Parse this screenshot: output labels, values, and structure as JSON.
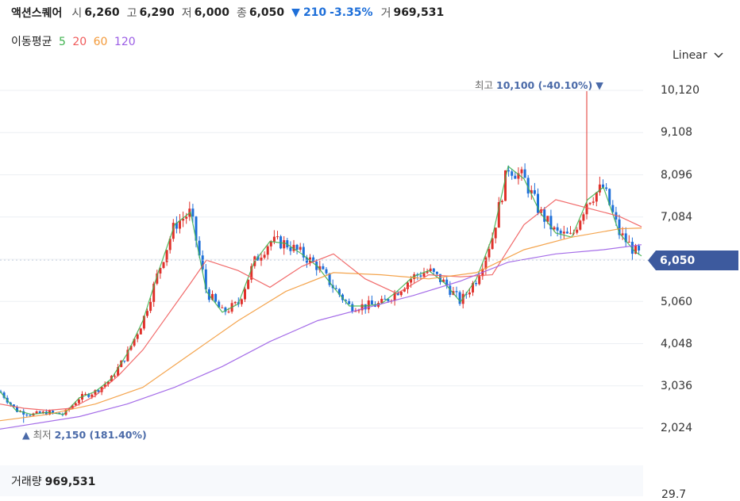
{
  "header": {
    "name": "액션스퀘어",
    "open_label": "시",
    "open": "6,260",
    "high_label": "고",
    "high": "6,290",
    "low_label": "저",
    "low": "6,000",
    "close_label": "종",
    "close": "6,050",
    "change_arrow": "▼",
    "change": "210",
    "change_pct": "-3.35%",
    "volume_label": "거",
    "volume": "969,531"
  },
  "ma_legend": {
    "label": "이동평균",
    "items": [
      {
        "period": "5",
        "color": "#3fb34f"
      },
      {
        "period": "20",
        "color": "#f05a5a"
      },
      {
        "period": "60",
        "color": "#f39a3a"
      },
      {
        "period": "120",
        "color": "#9b5de5"
      }
    ]
  },
  "scale_button": {
    "label": "Linear",
    "icon": "chevron-down-icon"
  },
  "annotations": {
    "max_label": "최고",
    "max_value": "10,100 (-40.10%)",
    "max_marker": "▼",
    "min_label": "최저",
    "min_value": "2,150 (181.40%)",
    "min_marker": "▲"
  },
  "current_price_tag": "6,050",
  "volume_panel": {
    "label": "거래량",
    "value": "969,531",
    "axis_tick_partial": "29.7"
  },
  "chart_data": {
    "type": "candlestick",
    "y_ticks": [
      "10,120",
      "9,108",
      "8,096",
      "7,084",
      "6,050",
      "5,060",
      "4,048",
      "3,036",
      "2,024"
    ],
    "ylim": [
      2024,
      10120
    ],
    "up_color": "#e0312b",
    "down_color": "#1e6fd9",
    "series": [
      {
        "name": "5",
        "color": "#3fb34f",
        "points": [
          [
            0,
            2900
          ],
          [
            20,
            2450
          ],
          [
            40,
            2350
          ],
          [
            60,
            2400
          ],
          [
            80,
            2350
          ],
          [
            100,
            2750
          ],
          [
            120,
            2900
          ],
          [
            140,
            3200
          ],
          [
            160,
            3800
          ],
          [
            180,
            4600
          ],
          [
            200,
            5800
          ],
          [
            220,
            6900
          ],
          [
            240,
            7200
          ],
          [
            260,
            5300
          ],
          [
            280,
            4800
          ],
          [
            300,
            5000
          ],
          [
            320,
            6000
          ],
          [
            340,
            6500
          ],
          [
            360,
            6450
          ],
          [
            380,
            6200
          ],
          [
            400,
            5900
          ],
          [
            420,
            5400
          ],
          [
            440,
            4950
          ],
          [
            460,
            4950
          ],
          [
            480,
            5000
          ],
          [
            500,
            5300
          ],
          [
            520,
            5650
          ],
          [
            540,
            5800
          ],
          [
            560,
            5500
          ],
          [
            580,
            5050
          ],
          [
            600,
            5600
          ],
          [
            620,
            6600
          ],
          [
            640,
            8300
          ],
          [
            660,
            8000
          ],
          [
            680,
            7200
          ],
          [
            700,
            6700
          ],
          [
            720,
            6600
          ],
          [
            740,
            7500
          ],
          [
            760,
            7800
          ],
          [
            780,
            6700
          ],
          [
            800,
            6250
          ],
          [
            808,
            6150
          ]
        ]
      },
      {
        "name": "20",
        "color": "#f05a5a",
        "points": [
          [
            0,
            2600
          ],
          [
            30,
            2500
          ],
          [
            60,
            2450
          ],
          [
            90,
            2500
          ],
          [
            120,
            2800
          ],
          [
            150,
            3300
          ],
          [
            180,
            3900
          ],
          [
            210,
            4700
          ],
          [
            240,
            5500
          ],
          [
            260,
            6050
          ],
          [
            300,
            5800
          ],
          [
            340,
            5400
          ],
          [
            380,
            5900
          ],
          [
            420,
            6200
          ],
          [
            460,
            5600
          ],
          [
            500,
            5250
          ],
          [
            540,
            5700
          ],
          [
            580,
            5650
          ],
          [
            620,
            5700
          ],
          [
            660,
            6900
          ],
          [
            700,
            7500
          ],
          [
            740,
            7300
          ],
          [
            780,
            7100
          ],
          [
            808,
            6850
          ]
        ]
      },
      {
        "name": "60",
        "color": "#f39a3a",
        "points": [
          [
            0,
            2200
          ],
          [
            60,
            2350
          ],
          [
            120,
            2600
          ],
          [
            180,
            3000
          ],
          [
            240,
            3800
          ],
          [
            300,
            4600
          ],
          [
            360,
            5300
          ],
          [
            420,
            5750
          ],
          [
            480,
            5700
          ],
          [
            540,
            5600
          ],
          [
            600,
            5750
          ],
          [
            660,
            6300
          ],
          [
            720,
            6600
          ],
          [
            780,
            6800
          ],
          [
            808,
            6820
          ]
        ]
      },
      {
        "name": "120",
        "color": "#9b5de5",
        "points": [
          [
            0,
            2000
          ],
          [
            100,
            2300
          ],
          [
            160,
            2600
          ],
          [
            220,
            3000
          ],
          [
            280,
            3500
          ],
          [
            340,
            4100
          ],
          [
            400,
            4600
          ],
          [
            460,
            4900
          ],
          [
            520,
            5200
          ],
          [
            580,
            5550
          ],
          [
            640,
            6000
          ],
          [
            700,
            6200
          ],
          [
            760,
            6300
          ],
          [
            808,
            6420
          ]
        ]
      }
    ],
    "max_point": {
      "x": 740,
      "value": 10100
    },
    "min_point": {
      "x": 30,
      "value": 2150
    },
    "current": 6050
  }
}
